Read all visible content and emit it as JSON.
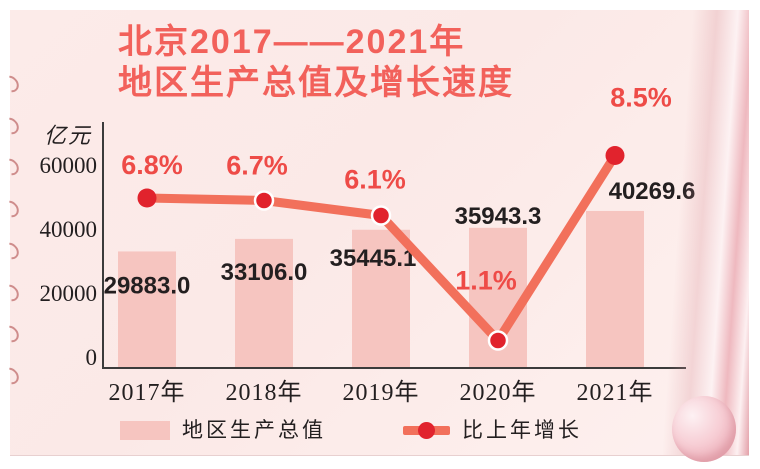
{
  "header": {
    "title_line1": "北京2017——2021年",
    "title_line2": "地区生产总值及增长速度"
  },
  "chart_data": {
    "type": "bar+line combo",
    "title": "北京2017——2021年地区生产总值及增长速度",
    "categories": [
      "2017年",
      "2018年",
      "2019年",
      "2020年",
      "2021年"
    ],
    "series": [
      {
        "name": "地区生产总值",
        "type": "bar",
        "unit": "亿元",
        "values": [
          29883.0,
          33106.0,
          35445.1,
          35943.3,
          40269.6
        ]
      },
      {
        "name": "比上年增长",
        "type": "line",
        "unit": "%",
        "values": [
          6.8,
          6.7,
          6.1,
          1.1,
          8.5
        ]
      }
    ],
    "bar_labels": [
      "29883.0",
      "33106.0",
      "35445.1",
      "35943.3",
      "40269.6"
    ],
    "pct_labels": [
      "6.8%",
      "6.7%",
      "6.1%",
      "1.1%",
      "8.5%"
    ],
    "ylabel": "亿元",
    "yticks": [
      0,
      20000,
      40000,
      60000
    ],
    "ylim": [
      0,
      60000
    ],
    "grid": "off",
    "legend_position": "bottom"
  },
  "colors": {
    "page_bg": "#fbe9e7",
    "title_red": "#f2615b",
    "percent_red": "#ee4b47",
    "bar_pink": "#f6c5c0",
    "line_coral": "#f2705b",
    "dot_red": "#e1232d",
    "axis_dark": "#3b3b3b",
    "text_dark": "#231f20",
    "binding_rose": "#cf8d8c"
  }
}
